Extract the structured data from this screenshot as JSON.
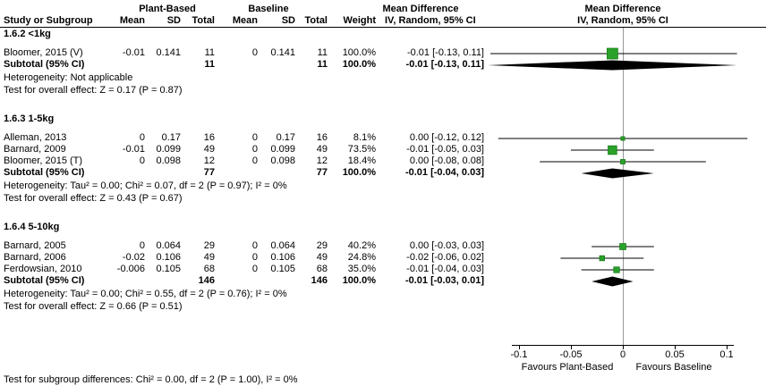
{
  "header": {
    "group1": "Plant-Based",
    "group2": "Baseline",
    "md1": "Mean Difference",
    "md2": "Mean Difference",
    "col_study": "Study or Subgroup",
    "col_mean": "Mean",
    "col_sd": "SD",
    "col_total": "Total",
    "col_weight": "Weight",
    "col_ci": "IV, Random, 95% CI"
  },
  "axis": {
    "min": -0.1,
    "max": 0.1,
    "ticks": [
      -0.1,
      -0.05,
      0,
      0.05,
      0.1
    ],
    "tick_labels": [
      "-0.1",
      "-0.05",
      "0",
      "0.05",
      "0.1"
    ],
    "favours_left": "Favours Plant-Based",
    "favours_right": "Favours Baseline"
  },
  "colors": {
    "square": "#2aa22a",
    "square_border": "#157815",
    "diamond": "#000000",
    "ci_line": "#000000",
    "zero_line": "#999999"
  },
  "footer": {
    "subgroup_test": "Test for subgroup differences: Chi² = 0.00, df = 2 (P = 1.00), I² = 0%"
  },
  "chart_data": {
    "type": "forest",
    "effect_measure": "Mean Difference, IV, Random, 95% CI",
    "groups": [
      {
        "title": "1.6.2 <1kg",
        "studies": [
          {
            "name": "Bloomer, 2015 (V)",
            "mean1": "-0.01",
            "sd1": "0.141",
            "total1": "11",
            "mean2": "0",
            "sd2": "0.141",
            "total2": "11",
            "weight": "100.0%",
            "weight_pct": 100.0,
            "ci_text": "-0.01 [-0.13, 0.11]",
            "est": -0.01,
            "lo": -0.13,
            "hi": 0.11
          }
        ],
        "subtotal": {
          "label": "Subtotal (95% CI)",
          "total1": "11",
          "total2": "11",
          "weight": "100.0%",
          "ci_text": "-0.01 [-0.13, 0.11]",
          "est": -0.01,
          "lo": -0.13,
          "hi": 0.11
        },
        "heterogeneity": "Heterogeneity: Not applicable",
        "overall_test": "Test for overall effect: Z = 0.17 (P = 0.87)"
      },
      {
        "title": "1.6.3 1-5kg",
        "studies": [
          {
            "name": "Alleman, 2013",
            "mean1": "0",
            "sd1": "0.17",
            "total1": "16",
            "mean2": "0",
            "sd2": "0.17",
            "total2": "16",
            "weight": "8.1%",
            "weight_pct": 8.1,
            "ci_text": "0.00 [-0.12, 0.12]",
            "est": 0,
            "lo": -0.12,
            "hi": 0.12
          },
          {
            "name": "Barnard, 2009",
            "mean1": "-0.01",
            "sd1": "0.099",
            "total1": "49",
            "mean2": "0",
            "sd2": "0.099",
            "total2": "49",
            "weight": "73.5%",
            "weight_pct": 73.5,
            "ci_text": "-0.01 [-0.05, 0.03]",
            "est": -0.01,
            "lo": -0.05,
            "hi": 0.03
          },
          {
            "name": "Bloomer, 2015 (T)",
            "mean1": "0",
            "sd1": "0.098",
            "total1": "12",
            "mean2": "0",
            "sd2": "0.098",
            "total2": "12",
            "weight": "18.4%",
            "weight_pct": 18.4,
            "ci_text": "0.00 [-0.08, 0.08]",
            "est": 0,
            "lo": -0.08,
            "hi": 0.08
          }
        ],
        "subtotal": {
          "label": "Subtotal (95% CI)",
          "total1": "77",
          "total2": "77",
          "weight": "100.0%",
          "ci_text": "-0.01 [-0.04, 0.03]",
          "est": -0.01,
          "lo": -0.04,
          "hi": 0.03
        },
        "heterogeneity": "Heterogeneity: Tau² = 0.00; Chi² = 0.07, df = 2 (P = 0.97); I² = 0%",
        "overall_test": "Test for overall effect: Z = 0.43 (P = 0.67)"
      },
      {
        "title": "1.6.4 5-10kg",
        "studies": [
          {
            "name": "Barnard, 2005",
            "mean1": "0",
            "sd1": "0.064",
            "total1": "29",
            "mean2": "0",
            "sd2": "0.064",
            "total2": "29",
            "weight": "40.2%",
            "weight_pct": 40.2,
            "ci_text": "0.00 [-0.03, 0.03]",
            "est": 0,
            "lo": -0.03,
            "hi": 0.03
          },
          {
            "name": "Barnard, 2006",
            "mean1": "-0.02",
            "sd1": "0.106",
            "total1": "49",
            "mean2": "0",
            "sd2": "0.106",
            "total2": "49",
            "weight": "24.8%",
            "weight_pct": 24.8,
            "ci_text": "-0.02 [-0.06, 0.02]",
            "est": -0.02,
            "lo": -0.06,
            "hi": 0.02
          },
          {
            "name": "Ferdowsian, 2010",
            "mean1": "-0.006",
            "sd1": "0.105",
            "total1": "68",
            "mean2": "0",
            "sd2": "0.105",
            "total2": "68",
            "weight": "35.0%",
            "weight_pct": 35.0,
            "ci_text": "-0.01 [-0.04, 0.03]",
            "est": -0.006,
            "lo": -0.04,
            "hi": 0.03
          }
        ],
        "subtotal": {
          "label": "Subtotal (95% CI)",
          "total1": "146",
          "total2": "146",
          "weight": "100.0%",
          "ci_text": "-0.01 [-0.03, 0.01]",
          "est": -0.01,
          "lo": -0.03,
          "hi": 0.01
        },
        "heterogeneity": "Heterogeneity: Tau² = 0.00; Chi² = 0.55, df = 2 (P = 0.76); I² = 0%",
        "overall_test": "Test for overall effect: Z = 0.66 (P = 0.51)"
      }
    ]
  }
}
